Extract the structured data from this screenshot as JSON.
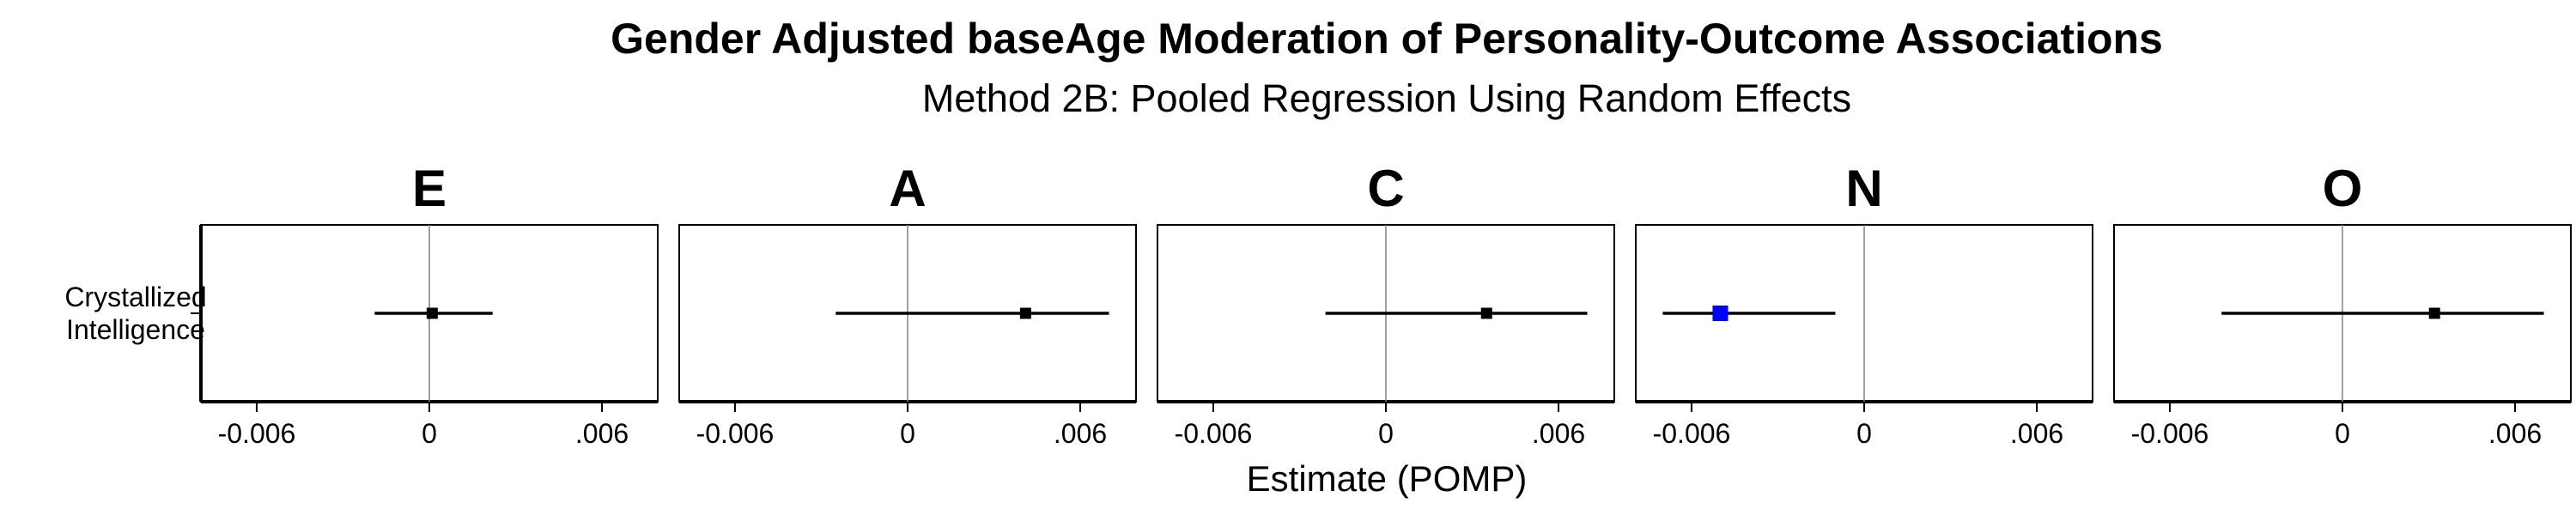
{
  "chart_data": {
    "type": "forest",
    "title": "Gender Adjusted baseAge Moderation of Personality-Outcome Associations",
    "subtitle": "Method 2B: Pooled Regression Using Random Effects",
    "xlabel": "Estimate (POMP)",
    "ylabel": "",
    "xlim": [
      -0.0077,
      0.0077
    ],
    "x_ticks": [
      -0.006,
      0,
      0.006
    ],
    "x_tick_labels": [
      "-0.006",
      "0",
      ".006"
    ],
    "y_categories": [
      "Crystallized\nIntelligence"
    ],
    "reference_line": 0,
    "grid": false,
    "colors": {
      "default": "#000000",
      "significant": "#0000ff",
      "reference": "#808080"
    },
    "facets": [
      {
        "label": "E",
        "estimate": 0.0001,
        "ci": [
          -0.0019,
          0.0022
        ],
        "color": "#000000"
      },
      {
        "label": "A",
        "estimate": 0.0041,
        "ci": [
          -0.0025,
          0.007
        ],
        "color": "#000000"
      },
      {
        "label": "C",
        "estimate": 0.0035,
        "ci": [
          -0.0021,
          0.007
        ],
        "color": "#000000"
      },
      {
        "label": "N",
        "estimate": -0.005,
        "ci": [
          -0.007,
          -0.001
        ],
        "color": "#0000ff"
      },
      {
        "label": "O",
        "estimate": 0.0032,
        "ci": [
          -0.0042,
          0.007
        ],
        "color": "#000000"
      }
    ]
  }
}
